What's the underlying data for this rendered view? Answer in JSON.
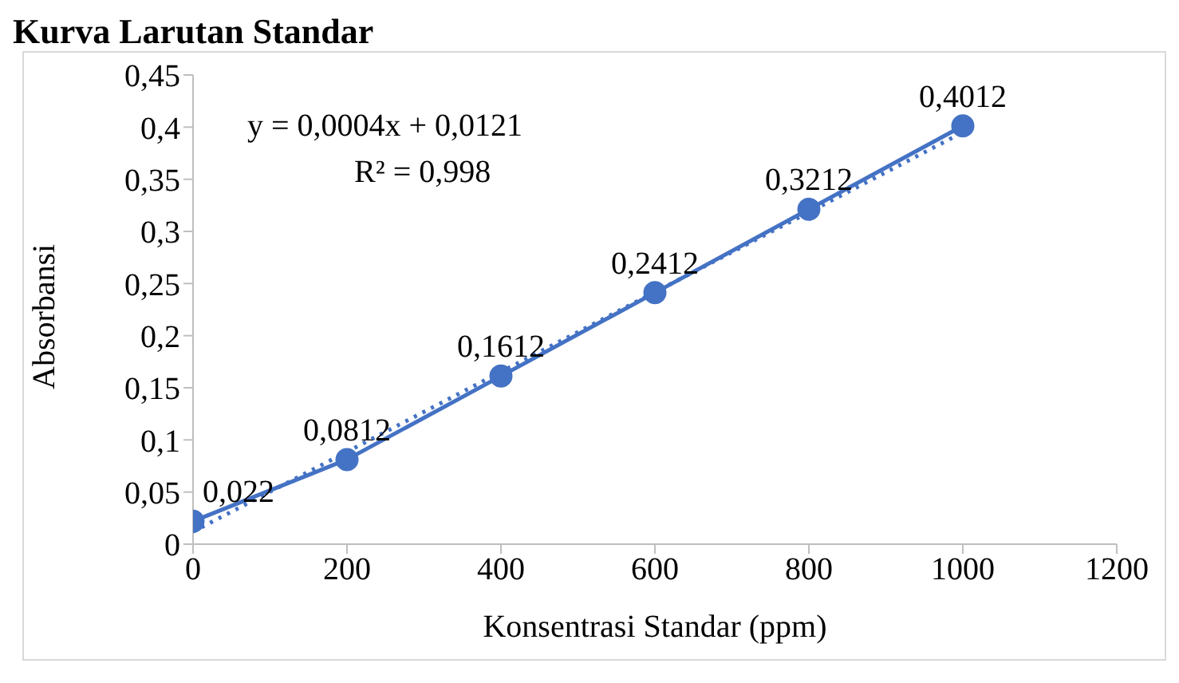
{
  "chart_data": {
    "type": "line",
    "title": "Kurva Larutan Standar",
    "xlabel": "Konsentrasi Standar (ppm)",
    "ylabel": "Absorbansi",
    "x": [
      0,
      200,
      400,
      600,
      800,
      1000
    ],
    "series": [
      {
        "color": "#4472c4",
        "values": [
          0.022,
          0.0812,
          0.1612,
          0.2412,
          0.3212,
          0.4012
        ],
        "value_labels": [
          "0,022",
          "0,0812",
          "0,1612",
          "0,2412",
          "0,3212",
          "0,4012"
        ],
        "marker": "circle",
        "line_style": "solid"
      },
      {
        "type": "line",
        "x": [
          0,
          1000
        ],
        "values": [
          0.012,
          0.395
        ],
        "color": "#4472c4",
        "marker": "none",
        "line_style": "dotted"
      }
    ],
    "annotations": [
      "y = 0,0004x + 0,0121",
      "R² = 0,998"
    ],
    "xlim": [
      0,
      1200
    ],
    "xticks": [
      0,
      200,
      400,
      600,
      800,
      1000,
      1200
    ],
    "ylim": [
      0,
      0.45
    ],
    "yticks": [
      0,
      {
        "value": 0.05,
        "label": "0,05"
      },
      {
        "value": 0.1,
        "label": "0,1"
      },
      {
        "value": 0.15,
        "label": "0,15"
      },
      {
        "value": 0.2,
        "label": "0,2"
      },
      {
        "value": 0.25,
        "label": "0,25"
      },
      {
        "value": 0.3,
        "label": "0,3"
      },
      {
        "value": 0.35,
        "label": "0,35"
      },
      {
        "value": 0.4,
        "label": "0,4"
      },
      {
        "value": 0.45,
        "label": "0,45"
      }
    ],
    "grid": false,
    "legend": false
  }
}
